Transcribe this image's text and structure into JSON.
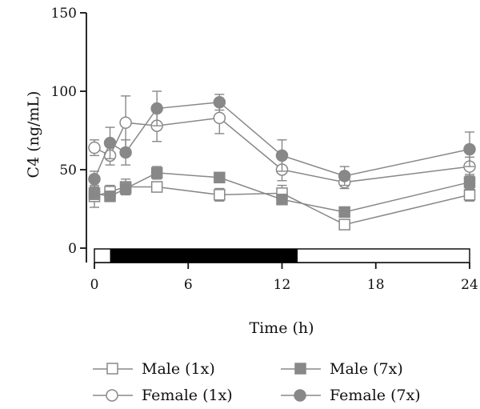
{
  "chart_data": {
    "type": "line",
    "title": "",
    "xlabel": "Time (h)",
    "ylabel": "C4 (ng/mL)",
    "xlim": [
      0,
      24
    ],
    "ylim": [
      0,
      150
    ],
    "x_ticks": [
      "0",
      "6",
      "12",
      "18",
      "24"
    ],
    "y_ticks": [
      "0",
      "50",
      "100",
      "150"
    ],
    "grid": false,
    "legend_placement": "bottom",
    "dark_period_bar": {
      "start": 1,
      "end": 13,
      "range": [
        0,
        24
      ]
    },
    "series": [
      {
        "name": "Male (1x)",
        "marker": "square",
        "filled": false,
        "color": "#888888",
        "x": [
          0,
          1,
          2,
          4,
          8,
          12,
          16,
          24
        ],
        "y": [
          33,
          36,
          39,
          39,
          34,
          35,
          15,
          34
        ],
        "err": [
          7,
          4,
          5,
          3,
          4,
          5,
          2,
          4
        ]
      },
      {
        "name": "Female (1x)",
        "marker": "circle",
        "filled": false,
        "color": "#888888",
        "x": [
          0,
          1,
          2,
          4,
          8,
          12,
          16,
          24
        ],
        "y": [
          64,
          59,
          80,
          78,
          83,
          50,
          42,
          52
        ],
        "err": [
          5,
          6,
          17,
          10,
          10,
          7,
          4,
          6
        ]
      },
      {
        "name": "Male (7x)",
        "marker": "square",
        "filled": true,
        "color": "#888888",
        "x": [
          0,
          1,
          2,
          4,
          8,
          12,
          16,
          24
        ],
        "y": [
          35,
          33,
          38,
          48,
          45,
          31,
          23,
          42
        ],
        "err": [
          4,
          3,
          4,
          4,
          3,
          3,
          3,
          5
        ]
      },
      {
        "name": "Female (7x)",
        "marker": "circle",
        "filled": true,
        "color": "#888888",
        "x": [
          0,
          1,
          2,
          4,
          8,
          12,
          16,
          24
        ],
        "y": [
          44,
          67,
          61,
          89,
          93,
          59,
          46,
          63
        ],
        "err": [
          5,
          10,
          8,
          11,
          5,
          10,
          6,
          11
        ]
      }
    ]
  },
  "legend": {
    "items": [
      {
        "label": "Male (1x)"
      },
      {
        "label": "Male (7x)"
      },
      {
        "label": "Female (1x)"
      },
      {
        "label": "Female (7x)"
      }
    ]
  }
}
